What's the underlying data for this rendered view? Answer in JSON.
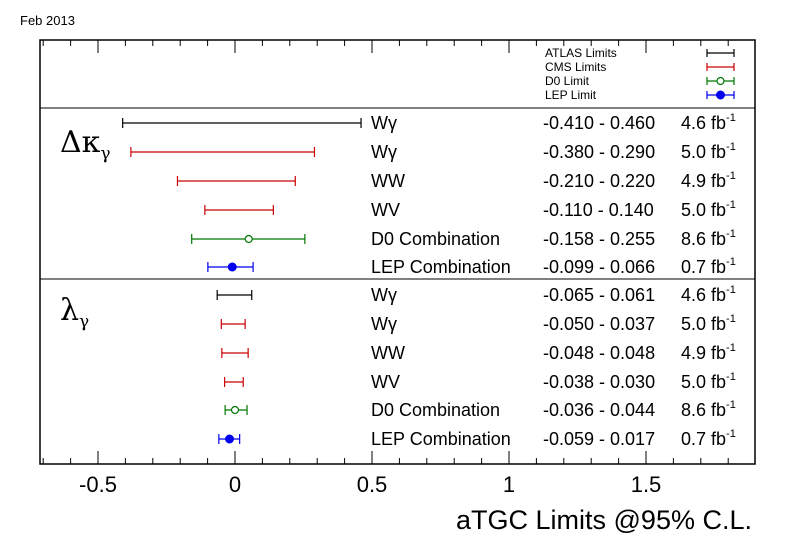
{
  "date_label": "Feb 2013",
  "colors": {
    "ATLAS": "#000000",
    "CMS": "#cc0000",
    "D0": "#007700",
    "LEP": "#0000ee",
    "frame": "#000000"
  },
  "legend": [
    {
      "label": "ATLAS Limits",
      "exp": "ATLAS",
      "marker": "none"
    },
    {
      "label": "CMS Limits",
      "exp": "CMS",
      "marker": "none"
    },
    {
      "label": "D0 Limit",
      "exp": "D0",
      "marker": "open"
    },
    {
      "label": "LEP Limit",
      "exp": "LEP",
      "marker": "filled"
    }
  ],
  "chart_data": {
    "type": "interval",
    "xlabel": "aTGC Limits @95% C.L.",
    "xlim": [
      -0.72,
      1.89
    ],
    "xticks": [
      {
        "v": -0.5,
        "label": "-0.5"
      },
      {
        "v": 0,
        "label": "0"
      },
      {
        "v": 0.5,
        "label": "0.5"
      },
      {
        "v": 1,
        "label": "1"
      },
      {
        "v": 1.5,
        "label": "1.5"
      }
    ],
    "sections": [
      {
        "key": "dk",
        "symbol": "Δκ",
        "subscript": "γ",
        "rows": [
          {
            "channel": "Wγ",
            "exp": "ATLAS",
            "low": -0.41,
            "high": 0.46,
            "range_text": "-0.410 - 0.460",
            "lumi_text": "4.6 fb",
            "lumi_exp": "-1",
            "center": null
          },
          {
            "channel": "Wγ",
            "exp": "CMS",
            "low": -0.38,
            "high": 0.29,
            "range_text": "-0.380 - 0.290",
            "lumi_text": "5.0 fb",
            "lumi_exp": "-1",
            "center": null
          },
          {
            "channel": "WW",
            "exp": "CMS",
            "low": -0.21,
            "high": 0.22,
            "range_text": "-0.210 - 0.220",
            "lumi_text": "4.9 fb",
            "lumi_exp": "-1",
            "center": null
          },
          {
            "channel": "WV",
            "exp": "CMS",
            "low": -0.11,
            "high": 0.14,
            "range_text": "-0.110 - 0.140",
            "lumi_text": "5.0 fb",
            "lumi_exp": "-1",
            "center": null
          },
          {
            "channel": "D0 Combination",
            "exp": "D0",
            "low": -0.158,
            "high": 0.255,
            "range_text": "-0.158 - 0.255",
            "lumi_text": "8.6 fb",
            "lumi_exp": "-1",
            "center": 0.05
          },
          {
            "channel": "LEP Combination",
            "exp": "LEP",
            "low": -0.099,
            "high": 0.066,
            "range_text": "-0.099 - 0.066",
            "lumi_text": "0.7 fb",
            "lumi_exp": "-1",
            "center": -0.01
          }
        ]
      },
      {
        "key": "lam",
        "symbol": "λ",
        "subscript": "γ",
        "rows": [
          {
            "channel": "Wγ",
            "exp": "ATLAS",
            "low": -0.065,
            "high": 0.061,
            "range_text": "-0.065 - 0.061",
            "lumi_text": "4.6 fb",
            "lumi_exp": "-1",
            "center": null
          },
          {
            "channel": "Wγ",
            "exp": "CMS",
            "low": -0.05,
            "high": 0.037,
            "range_text": "-0.050 - 0.037",
            "lumi_text": "5.0 fb",
            "lumi_exp": "-1",
            "center": null
          },
          {
            "channel": "WW",
            "exp": "CMS",
            "low": -0.048,
            "high": 0.048,
            "range_text": "-0.048 - 0.048",
            "lumi_text": "4.9 fb",
            "lumi_exp": "-1",
            "center": null
          },
          {
            "channel": "WV",
            "exp": "CMS",
            "low": -0.038,
            "high": 0.03,
            "range_text": "-0.038 - 0.030",
            "lumi_text": "5.0 fb",
            "lumi_exp": "-1",
            "center": null
          },
          {
            "channel": "D0 Combination",
            "exp": "D0",
            "low": -0.036,
            "high": 0.044,
            "range_text": "-0.036 - 0.044",
            "lumi_text": "8.6 fb",
            "lumi_exp": "-1",
            "center": 0.0
          },
          {
            "channel": "LEP Combination",
            "exp": "LEP",
            "low": -0.059,
            "high": 0.017,
            "range_text": "-0.059 - 0.017",
            "lumi_text": "0.7 fb",
            "lumi_exp": "-1",
            "center": -0.02
          }
        ]
      }
    ]
  }
}
